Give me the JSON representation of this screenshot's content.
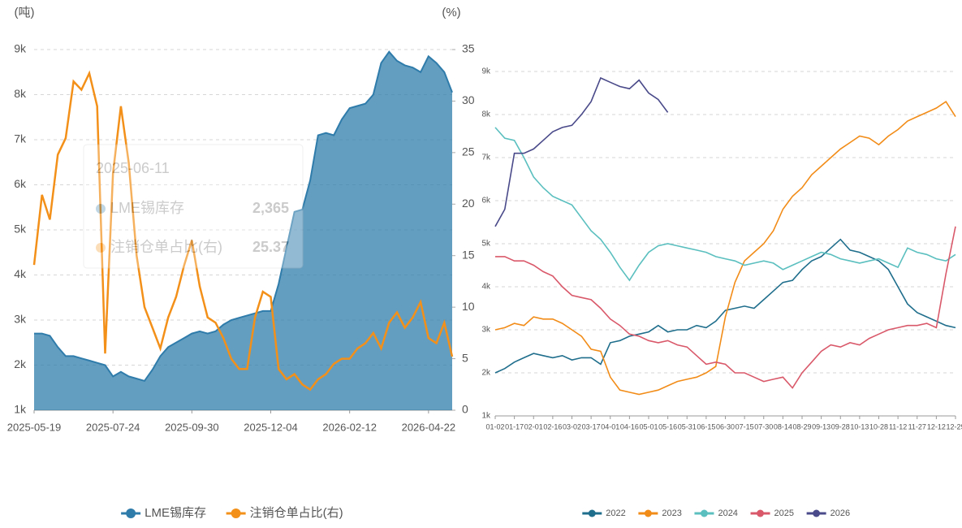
{
  "chart_data": [
    {
      "type": "combo",
      "ylabel": "(吨)",
      "y2label": "(%)",
      "categories": [
        "2025-05-19",
        null,
        null,
        null,
        null,
        null,
        null,
        null,
        null,
        null,
        "2025-07-24",
        null,
        null,
        null,
        null,
        null,
        null,
        null,
        null,
        null,
        "2025-09-30",
        null,
        null,
        null,
        null,
        null,
        null,
        null,
        null,
        null,
        "2025-12-04",
        null,
        null,
        null,
        null,
        null,
        null,
        null,
        null,
        null,
        "2026-02-12",
        null,
        null,
        null,
        null,
        null,
        null,
        null,
        null,
        null,
        "2026-04-22",
        null,
        null,
        null
      ],
      "ylim": [
        1000,
        9000
      ],
      "yticks": [
        {
          "value": 1000,
          "label": "1k"
        },
        {
          "value": 2000,
          "label": "2k"
        },
        {
          "value": 3000,
          "label": "3k"
        },
        {
          "value": 4000,
          "label": "4k"
        },
        {
          "value": 5000,
          "label": "5k"
        },
        {
          "value": 6000,
          "label": "6k"
        },
        {
          "value": 7000,
          "label": "7k"
        },
        {
          "value": 8000,
          "label": "8k"
        },
        {
          "value": 9000,
          "label": "9k"
        }
      ],
      "y2lim": [
        0,
        35
      ],
      "y2ticks": [
        0,
        5,
        10,
        15,
        20,
        25,
        30,
        35
      ],
      "grid": true,
      "series": [
        {
          "name": "LME锡库存",
          "type": "area",
          "color": "#2f7cab",
          "values": [
            2700,
            2700,
            2650,
            2400,
            2200,
            2200,
            2150,
            2100,
            2050,
            2000,
            1750,
            1850,
            1750,
            1700,
            1650,
            1900,
            2200,
            2400,
            2500,
            2600,
            2700,
            2750,
            2700,
            2750,
            2900,
            3000,
            3050,
            3100,
            3150,
            3200,
            3200,
            3800,
            4600,
            5400,
            5450,
            6100,
            7100,
            7150,
            7100,
            7450,
            7700,
            7750,
            7800,
            8000,
            8700,
            8950,
            8750,
            8650,
            8600,
            8500,
            8850,
            8700,
            8500,
            8050
          ]
        },
        {
          "name": "注销仓单占比(右)",
          "type": "line",
          "axis": "y2",
          "color": "#f39019",
          "values": [
            14.1,
            20.9,
            18.5,
            24.8,
            26.4,
            31.9,
            31.1,
            32.7,
            29.5,
            5.5,
            23,
            29.5,
            24,
            15,
            10,
            8,
            6,
            9,
            11,
            14,
            16.5,
            12,
            9,
            8.5,
            7,
            5,
            4,
            4,
            9,
            11.5,
            11,
            4,
            3,
            3.5,
            2.5,
            2,
            3,
            3.5,
            4.5,
            5,
            5,
            6,
            6.5,
            7.5,
            6,
            8.5,
            9.5,
            8,
            9,
            10.5,
            7,
            6.5,
            8.5,
            5.2
          ]
        }
      ],
      "tooltip": {
        "title": "2025-06-11",
        "values": [
          2365,
          25.37
        ],
        "value_labels": [
          "2,365",
          "25.37"
        ]
      }
    },
    {
      "type": "line",
      "categories": [
        "01-02",
        null,
        "01-17",
        null,
        "02-01",
        null,
        "02-16",
        null,
        "03-02",
        null,
        "03-17",
        null,
        "04-01",
        null,
        "04-16",
        null,
        "05-01",
        null,
        "05-16",
        null,
        "05-31",
        null,
        "06-15",
        null,
        "06-30",
        null,
        "07-15",
        null,
        "07-30",
        null,
        "08-14",
        null,
        "08-29",
        null,
        "09-13",
        null,
        "09-28",
        null,
        "10-13",
        null,
        "10-28",
        null,
        "11-12",
        null,
        "11-27",
        null,
        "12-12",
        null,
        "12-29"
      ],
      "ylim": [
        1000,
        9000
      ],
      "yticks": [
        {
          "value": 1000,
          "label": "1k"
        },
        {
          "value": 2000,
          "label": "2k"
        },
        {
          "value": 3000,
          "label": "3k"
        },
        {
          "value": 4000,
          "label": "4k"
        },
        {
          "value": 5000,
          "label": "5k"
        },
        {
          "value": 6000,
          "label": "6k"
        },
        {
          "value": 7000,
          "label": "7k"
        },
        {
          "value": 8000,
          "label": "8k"
        },
        {
          "value": 9000,
          "label": "9k"
        }
      ],
      "grid": true,
      "series": [
        {
          "name": "2022",
          "color": "#1f6e8c",
          "values": [
            2000,
            2100,
            2250,
            2350,
            2450,
            2400,
            2350,
            2400,
            2300,
            2350,
            2350,
            2200,
            2700,
            2750,
            2850,
            2900,
            2950,
            3100,
            2950,
            3000,
            3000,
            3100,
            3050,
            3200,
            3450,
            3500,
            3550,
            3500,
            3700,
            3900,
            4100,
            4150,
            4400,
            4600,
            4700,
            4900,
            5100,
            4850,
            4800,
            4700,
            4600,
            4400,
            4000,
            3600,
            3400,
            3300,
            3200,
            3100,
            3050
          ]
        },
        {
          "name": "2023",
          "color": "#f28c18",
          "values": [
            3000,
            3050,
            3150,
            3100,
            3300,
            3250,
            3250,
            3150,
            3000,
            2850,
            2550,
            2500,
            1900,
            1600,
            1550,
            1500,
            1550,
            1600,
            1700,
            1800,
            1850,
            1900,
            2000,
            2150,
            3300,
            4100,
            4600,
            4800,
            5000,
            5300,
            5800,
            6100,
            6300,
            6600,
            6800,
            7000,
            7200,
            7350,
            7500,
            7450,
            7300,
            7500,
            7650,
            7850,
            7950,
            8050,
            8150,
            8300,
            7950
          ]
        },
        {
          "name": "2024",
          "color": "#5bbfbf",
          "values": [
            7700,
            7450,
            7400,
            7000,
            6550,
            6300,
            6100,
            6000,
            5900,
            5600,
            5300,
            5100,
            4800,
            4450,
            4150,
            4500,
            4800,
            4950,
            5000,
            4950,
            4900,
            4850,
            4800,
            4700,
            4650,
            4600,
            4500,
            4550,
            4600,
            4550,
            4400,
            4500,
            4600,
            4700,
            4800,
            4750,
            4650,
            4600,
            4550,
            4600,
            4650,
            4550,
            4450,
            4900,
            4800,
            4750,
            4650,
            4600,
            4750
          ]
        },
        {
          "name": "2025",
          "color": "#d9596a",
          "values": [
            4700,
            4700,
            4600,
            4600,
            4500,
            4350,
            4250,
            4000,
            3800,
            3750,
            3700,
            3500,
            3250,
            3100,
            2900,
            2850,
            2750,
            2700,
            2750,
            2650,
            2600,
            2400,
            2200,
            2250,
            2200,
            2000,
            2000,
            1900,
            1800,
            1850,
            1900,
            1650,
            2000,
            2250,
            2500,
            2650,
            2600,
            2700,
            2650,
            2800,
            2900,
            3000,
            3050,
            3100,
            3100,
            3150,
            3050,
            4300,
            5400
          ]
        },
        {
          "name": "2026",
          "color": "#4a4a8a",
          "values": [
            5400,
            5800,
            7100,
            7100,
            7200,
            7400,
            7600,
            7700,
            7750,
            8000,
            8300,
            8850,
            8750,
            8650,
            8600,
            8800,
            8500,
            8350,
            8050,
            null,
            null,
            null,
            null,
            null,
            null,
            null,
            null,
            null,
            null,
            null,
            null,
            null,
            null,
            null,
            null,
            null,
            null,
            null,
            null,
            null,
            null,
            null,
            null,
            null,
            null,
            null,
            null,
            null,
            null
          ]
        }
      ]
    }
  ]
}
